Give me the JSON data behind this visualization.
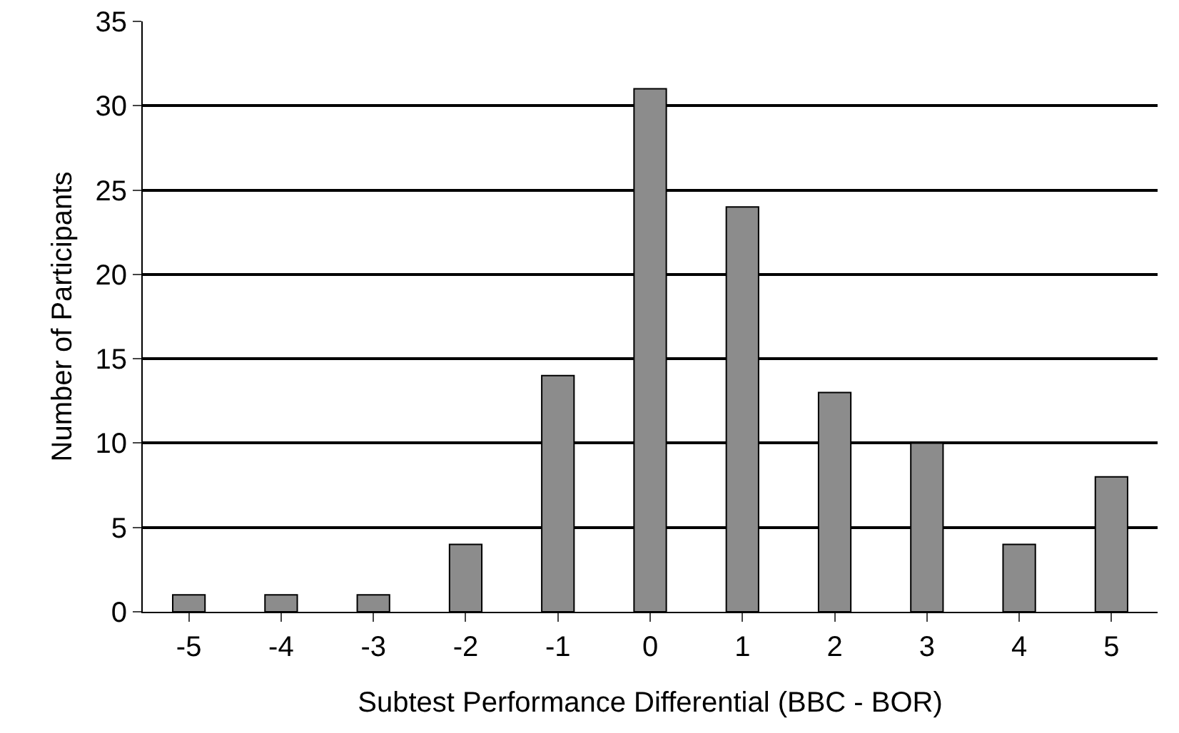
{
  "chart_data": {
    "type": "bar",
    "xlabel": "Subtest Performance Differential (BBC - BOR)",
    "ylabel": "Number of Participants",
    "categories": [
      "-5",
      "-4",
      "-3",
      "-2",
      "-1",
      "0",
      "1",
      "2",
      "3",
      "4",
      "5"
    ],
    "values": [
      1,
      1,
      1,
      4,
      14,
      31,
      24,
      13,
      10,
      4,
      8
    ],
    "color": "#8c8c8c",
    "ylim": [
      0,
      35
    ],
    "yticks": [
      0,
      5,
      10,
      15,
      20,
      25,
      30,
      35
    ],
    "grid": "y"
  }
}
